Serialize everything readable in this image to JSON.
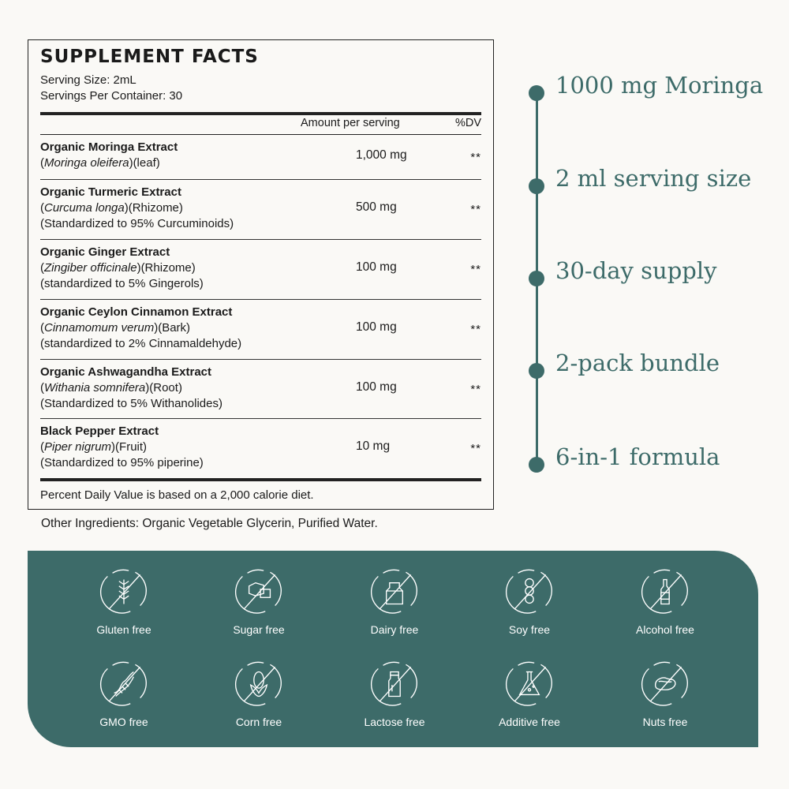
{
  "facts": {
    "title": "SUPPLEMENT FACTS",
    "serving_size": "Serving Size: 2mL",
    "servings_per_container": "Servings Per Container: 30",
    "col_amount": "Amount per serving",
    "col_dv": "%DV",
    "rows": [
      {
        "name": "Organic Moringa Extract",
        "latin": "Moringa oleifera",
        "part": "(leaf)",
        "note": "",
        "amount": "1,000 mg",
        "dv": "**"
      },
      {
        "name": "Organic Turmeric Extract",
        "latin": "Curcuma longa",
        "part": "(Rhizome)",
        "note": "(Standardized to 95% Curcuminoids)",
        "amount": "500 mg",
        "dv": "**"
      },
      {
        "name": "Organic Ginger Extract",
        "latin": "Zingiber officinale",
        "part": "(Rhizome)",
        "note": "(standardized to 5% Gingerols)",
        "amount": "100 mg",
        "dv": "**"
      },
      {
        "name": "Organic Ceylon Cinnamon Extract",
        "latin": "Cinnamomum verum",
        "part": "(Bark)",
        "note": "(standardized to 2% Cinnamaldehyde)",
        "amount": "100 mg",
        "dv": "**"
      },
      {
        "name": "Organic Ashwagandha Extract",
        "latin": "Withania somnifera",
        "part": "(Root)",
        "note": "(Standardized to 5% Withanolides)",
        "amount": "100 mg",
        "dv": "**"
      },
      {
        "name": "Black Pepper Extract",
        "latin": "Piper nigrum",
        "part": "(Fruit)",
        "note": "(Standardized to 95% piperine)",
        "amount": "10 mg",
        "dv": "**"
      }
    ],
    "footnote": "Percent Daily Value is based on a 2,000 calorie diet.",
    "other_ingredients": "Other Ingredients: Organic Vegetable Glycerin, Purified Water."
  },
  "highlights": [
    "1000 mg Moringa",
    "2 ml serving size",
    "30-day supply",
    "2-pack bundle",
    "6-in-1 formula"
  ],
  "badges": [
    {
      "label": "Gluten free",
      "icon": "wheat-icon"
    },
    {
      "label": "Sugar free",
      "icon": "sugar-cubes-icon"
    },
    {
      "label": "Dairy free",
      "icon": "milk-carton-icon"
    },
    {
      "label": "Soy free",
      "icon": "soybean-icon"
    },
    {
      "label": "Alcohol free",
      "icon": "bottle-icon"
    },
    {
      "label": "GMO free",
      "icon": "dna-icon"
    },
    {
      "label": "Corn free",
      "icon": "corn-icon"
    },
    {
      "label": "Lactose free",
      "icon": "milk-bottle-icon"
    },
    {
      "label": "Additive free",
      "icon": "flask-icon"
    },
    {
      "label": "Nuts free",
      "icon": "nut-icon"
    }
  ],
  "colors": {
    "accent": "#3d6b69",
    "background": "#faf9f6"
  }
}
